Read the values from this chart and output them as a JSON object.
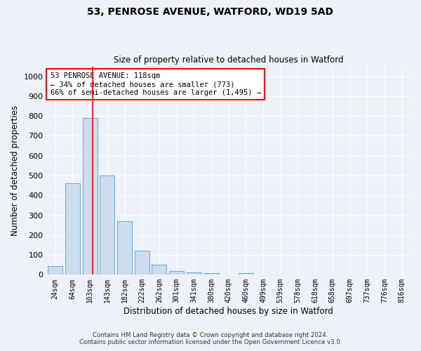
{
  "title_line1": "53, PENROSE AVENUE, WATFORD, WD19 5AD",
  "title_line2": "Size of property relative to detached houses in Watford",
  "xlabel": "Distribution of detached houses by size in Watford",
  "ylabel": "Number of detached properties",
  "categories": [
    "24sqm",
    "64sqm",
    "103sqm",
    "143sqm",
    "182sqm",
    "222sqm",
    "262sqm",
    "301sqm",
    "341sqm",
    "380sqm",
    "420sqm",
    "460sqm",
    "499sqm",
    "539sqm",
    "578sqm",
    "618sqm",
    "658sqm",
    "697sqm",
    "737sqm",
    "776sqm",
    "816sqm"
  ],
  "values": [
    45,
    460,
    790,
    500,
    270,
    120,
    50,
    20,
    12,
    10,
    0,
    10,
    0,
    0,
    0,
    0,
    0,
    0,
    0,
    0,
    0
  ],
  "bar_color": "#ccddf0",
  "bar_edge_color": "#6aaad4",
  "red_line_x": 2.15,
  "annotation_text": "53 PENROSE AVENUE: 118sqm\n← 34% of detached houses are smaller (773)\n66% of semi-detached houses are larger (1,495) →",
  "annotation_box_color": "white",
  "annotation_box_edge": "red",
  "ylim": [
    0,
    1050
  ],
  "yticks": [
    0,
    100,
    200,
    300,
    400,
    500,
    600,
    700,
    800,
    900,
    1000
  ],
  "footer_line1": "Contains HM Land Registry data © Crown copyright and database right 2024.",
  "footer_line2": "Contains public sector information licensed under the Open Government Licence v3.0.",
  "bg_color": "#eef2f8",
  "plot_bg_color": "#eef2f8"
}
